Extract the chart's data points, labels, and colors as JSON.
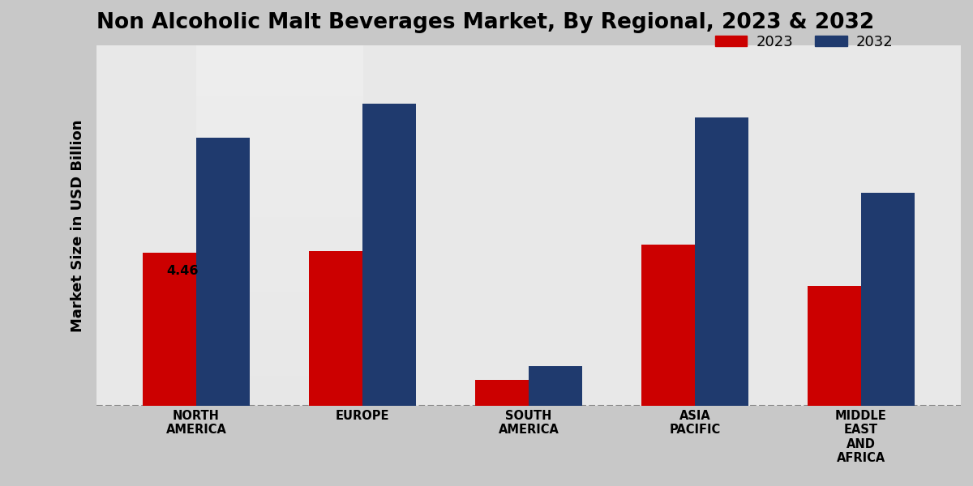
{
  "title": "Non Alcoholic Malt Beverages Market, By Regional, 2023 & 2032",
  "ylabel": "Market Size in USD Billion",
  "categories": [
    "NORTH\nAMERICA",
    "EUROPE",
    "SOUTH\nAMERICA",
    "ASIA\nPACIFIC",
    "MIDDLE\nEAST\nAND\nAFRICA"
  ],
  "values_2023": [
    4.46,
    4.5,
    0.75,
    4.7,
    3.5
  ],
  "values_2032": [
    7.8,
    8.8,
    1.15,
    8.4,
    6.2
  ],
  "color_2023": "#cc0000",
  "color_2032": "#1f3a6e",
  "annotation_text": "4.46",
  "annotation_bar_index": 0,
  "bar_width": 0.32,
  "outer_bg_color": "#c8c8c8",
  "plot_bg_color": "#e8e8e8",
  "ylim_min": 0,
  "ylim_max": 10.5,
  "dashed_line_y": 0,
  "legend_labels": [
    "2023",
    "2032"
  ],
  "title_fontsize": 19,
  "axis_label_fontsize": 13,
  "tick_fontsize": 10.5,
  "legend_fontsize": 13
}
